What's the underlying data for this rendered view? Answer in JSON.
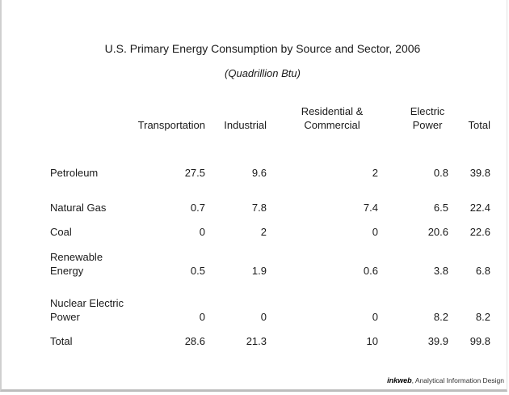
{
  "chart_data": {
    "type": "table",
    "title": "U.S. Primary Energy Consumption by Source and Sector, 2006",
    "subtitle": "(Quadrillion Btu)",
    "columns": [
      "Transportation",
      "Industrial",
      "Residential & Commercial",
      "Electric Power",
      "Total"
    ],
    "rows": [
      {
        "label": "Petroleum",
        "values": [
          "27.5",
          "9.6",
          "2",
          "0.8",
          "39.8"
        ]
      },
      {
        "label": "Natural Gas",
        "values": [
          "0.7",
          "7.8",
          "7.4",
          "6.5",
          "22.4"
        ]
      },
      {
        "label": "Coal",
        "values": [
          "0",
          "2",
          "0",
          "20.6",
          "22.6"
        ]
      },
      {
        "label": "Renewable Energy",
        "values": [
          "0.5",
          "1.9",
          "0.6",
          "3.8",
          "6.8"
        ]
      },
      {
        "label": "Nuclear Electric Power",
        "values": [
          "0",
          "0",
          "0",
          "8.2",
          "8.2"
        ]
      },
      {
        "label": "Total",
        "values": [
          "28.6",
          "21.3",
          "10",
          "39.9",
          "99.8"
        ]
      }
    ]
  },
  "footer": {
    "brand_logo": "inkweb",
    "brand_text": "Analytical Information Design"
  }
}
